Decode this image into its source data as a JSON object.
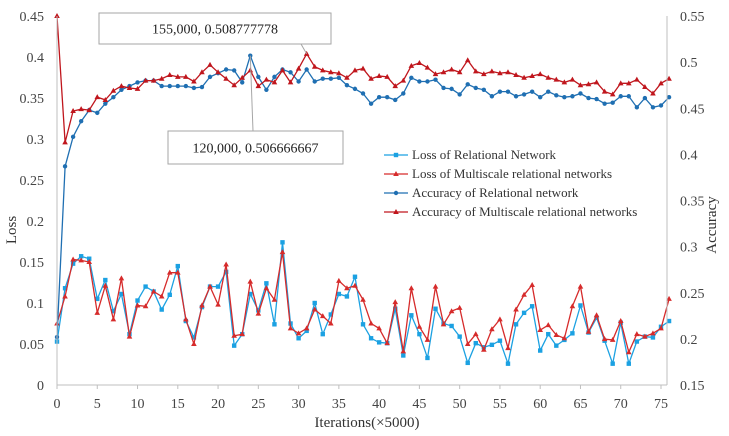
{
  "chart_data": {
    "type": "line",
    "xlabel": "Iterations(×5000)",
    "ylabel_left": "Loss",
    "ylabel_right": "Accuracy",
    "x_range": [
      0,
      76
    ],
    "x_ticks": [
      0,
      5,
      10,
      15,
      20,
      25,
      30,
      35,
      40,
      45,
      50,
      55,
      60,
      65,
      70,
      75
    ],
    "x_tick_labels": [
      "0",
      "5",
      "10",
      "15",
      "20",
      "25",
      "30",
      "35",
      "40",
      "45",
      "50",
      "55",
      "60",
      "65",
      "70",
      "75"
    ],
    "left_axis": {
      "ylim": [
        0,
        0.45
      ],
      "ticks": [
        0,
        0.05,
        0.1,
        0.15,
        0.2,
        0.25,
        0.3,
        0.35,
        0.4,
        0.45
      ],
      "tick_labels": [
        "0",
        "0.05",
        "0.1",
        "0.15",
        "0.2",
        "0.25",
        "0.3",
        "0.35",
        "0.4",
        "0.45"
      ]
    },
    "right_axis": {
      "ylim": [
        0.15,
        0.55
      ],
      "ticks": [
        0.15,
        0.2,
        0.25,
        0.3,
        0.35,
        0.4,
        0.45,
        0.5,
        0.55
      ],
      "tick_labels": [
        "0.15",
        "0.2",
        "0.25",
        "0.3",
        "0.35",
        "0.4",
        "0.45",
        "0.5",
        "0.55"
      ]
    },
    "series": [
      {
        "name": "Loss of Relational Network",
        "color": "#1ba1e2",
        "marker": "square",
        "axis": "left",
        "values": [
          0.053,
          0.118,
          0.148,
          0.157,
          0.154,
          0.105,
          0.128,
          0.09,
          0.111,
          0.062,
          0.103,
          0.12,
          0.114,
          0.092,
          0.11,
          0.145,
          0.078,
          0.058,
          0.095,
          0.12,
          0.12,
          0.138,
          0.048,
          0.062,
          0.111,
          0.091,
          0.124,
          0.074,
          0.174,
          0.075,
          0.057,
          0.066,
          0.1,
          0.062,
          0.086,
          0.111,
          0.108,
          0.132,
          0.074,
          0.057,
          0.052,
          0.051,
          0.093,
          0.036,
          0.085,
          0.062,
          0.033,
          0.093,
          0.075,
          0.072,
          0.059,
          0.027,
          0.051,
          0.046,
          0.049,
          0.054,
          0.026,
          0.074,
          0.088,
          0.096,
          0.042,
          0.062,
          0.048,
          0.055,
          0.063,
          0.097,
          0.064,
          0.082,
          0.054,
          0.026,
          0.076,
          0.026,
          0.053,
          0.059,
          0.058,
          0.071,
          0.078
        ]
      },
      {
        "name": "Loss of Multiscale relational networks",
        "color": "#d62b2b",
        "marker": "triangle",
        "axis": "left",
        "values": [
          0.075,
          0.108,
          0.153,
          0.152,
          0.15,
          0.088,
          0.121,
          0.08,
          0.13,
          0.059,
          0.097,
          0.096,
          0.114,
          0.108,
          0.137,
          0.137,
          0.08,
          0.05,
          0.097,
          0.12,
          0.098,
          0.147,
          0.06,
          0.062,
          0.126,
          0.087,
          0.118,
          0.104,
          0.162,
          0.069,
          0.063,
          0.069,
          0.092,
          0.084,
          0.075,
          0.127,
          0.118,
          0.121,
          0.104,
          0.075,
          0.069,
          0.051,
          0.101,
          0.041,
          0.118,
          0.071,
          0.055,
          0.12,
          0.074,
          0.09,
          0.094,
          0.05,
          0.062,
          0.043,
          0.068,
          0.08,
          0.045,
          0.092,
          0.11,
          0.122,
          0.067,
          0.073,
          0.061,
          0.057,
          0.096,
          0.12,
          0.065,
          0.085,
          0.056,
          0.055,
          0.078,
          0.04,
          0.062,
          0.059,
          0.063,
          0.069,
          0.105
        ]
      },
      {
        "name": "Accuracy of Relational network",
        "color": "#1f6fb2",
        "marker": "circle",
        "axis": "right",
        "values": [
          0.202,
          0.387,
          0.419,
          0.436,
          0.448,
          0.445,
          0.455,
          0.462,
          0.47,
          0.474,
          0.478,
          0.48,
          0.48,
          0.474,
          0.474,
          0.474,
          0.474,
          0.472,
          0.473,
          0.484,
          0.488,
          0.492,
          0.491,
          0.478,
          0.507,
          0.484,
          0.47,
          0.484,
          0.492,
          0.489,
          0.479,
          0.492,
          0.479,
          0.482,
          0.482,
          0.483,
          0.475,
          0.471,
          0.466,
          0.455,
          0.462,
          0.462,
          0.459,
          0.466,
          0.483,
          0.479,
          0.479,
          0.481,
          0.472,
          0.471,
          0.465,
          0.476,
          0.472,
          0.47,
          0.463,
          0.468,
          0.468,
          0.463,
          0.465,
          0.468,
          0.462,
          0.468,
          0.464,
          0.462,
          0.463,
          0.466,
          0.461,
          0.46,
          0.455,
          0.456,
          0.463,
          0.463,
          0.451,
          0.461,
          0.451,
          0.453,
          0.462
        ]
      },
      {
        "name": "Accuracy of Multiscale relational networks",
        "color": "#c0161d",
        "marker": "triangle",
        "axis": "right",
        "values": [
          0.55,
          0.413,
          0.447,
          0.449,
          0.448,
          0.462,
          0.459,
          0.469,
          0.474,
          0.472,
          0.471,
          0.48,
          0.48,
          0.482,
          0.486,
          0.484,
          0.484,
          0.479,
          0.489,
          0.497,
          0.489,
          0.482,
          0.475,
          0.483,
          0.491,
          0.474,
          0.481,
          0.478,
          0.491,
          0.478,
          0.493,
          0.509,
          0.495,
          0.491,
          0.489,
          0.488,
          0.483,
          0.491,
          0.493,
          0.482,
          0.485,
          0.484,
          0.474,
          0.48,
          0.496,
          0.499,
          0.494,
          0.487,
          0.489,
          0.492,
          0.489,
          0.502,
          0.49,
          0.487,
          0.49,
          0.488,
          0.489,
          0.486,
          0.483,
          0.485,
          0.487,
          0.483,
          0.481,
          0.478,
          0.481,
          0.475,
          0.476,
          0.478,
          0.468,
          0.465,
          0.477,
          0.477,
          0.481,
          0.473,
          0.466,
          0.477,
          0.482
        ]
      }
    ],
    "annotations": [
      {
        "text": "155,000, 0.508777778",
        "x": 31,
        "y": 0.509,
        "axis": "right"
      },
      {
        "text": "120,000, 0.506666667",
        "x": 24,
        "y": 0.507,
        "axis": "right"
      }
    ],
    "legend_position": "center-right"
  }
}
